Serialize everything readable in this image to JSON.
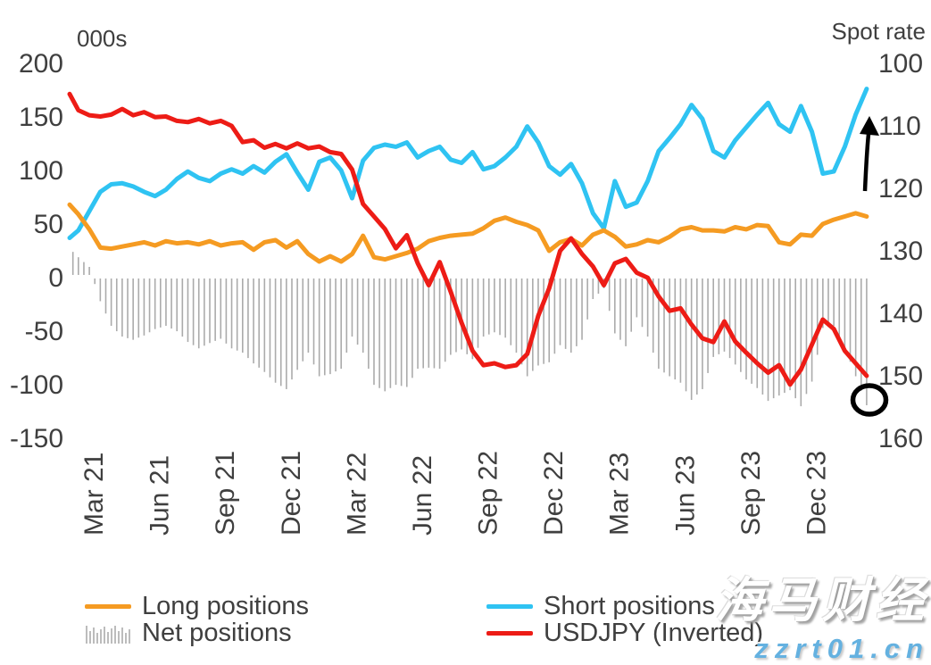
{
  "chart_data": {
    "type": "line+bar combo (dual axis, weekly CFTC JPY positioning vs USDJPY spot)",
    "left_axis": {
      "label": "000s",
      "ticks": [
        "200",
        "150",
        "100",
        "50",
        "0",
        "-50",
        "-100",
        "-150"
      ],
      "range": [
        -150,
        200
      ],
      "grid": false
    },
    "right_axis": {
      "label": "Spot rate",
      "ticks": [
        "100",
        "110",
        "120",
        "130",
        "140",
        "150",
        "160"
      ],
      "range": [
        100,
        160
      ],
      "inverted": true,
      "grid": false
    },
    "x_axis": {
      "tick_labels": [
        "Mar 21",
        "Jun 21",
        "Sep 21",
        "Dec 21",
        "Mar 22",
        "Jun 22",
        "Sep 22",
        "Dec 22",
        "Mar 23",
        "Jun 23",
        "Sep 23",
        "Dec 23"
      ],
      "tick_months": [
        0,
        3,
        6,
        9,
        12,
        15,
        18,
        21,
        24,
        27,
        30,
        33
      ],
      "unit": "months since Mar 2021"
    },
    "x_months": [
      -1.1,
      -0.7,
      -0.2,
      0.3,
      0.8,
      1.3,
      1.8,
      2.3,
      2.8,
      3.3,
      3.8,
      4.3,
      4.8,
      5.3,
      5.8,
      6.3,
      6.8,
      7.3,
      7.8,
      8.3,
      8.8,
      9.3,
      9.8,
      10.3,
      10.8,
      11.3,
      11.8,
      12.3,
      12.8,
      13.3,
      13.8,
      14.3,
      14.8,
      15.3,
      15.8,
      16.3,
      16.8,
      17.3,
      17.8,
      18.3,
      18.8,
      19.3,
      19.8,
      20.3,
      20.8,
      21.3,
      21.8,
      22.3,
      22.8,
      23.3,
      23.8,
      24.3,
      24.8,
      25.3,
      25.8,
      26.3,
      26.8,
      27.3,
      27.8,
      28.3,
      28.8,
      29.3,
      29.8,
      30.3,
      30.8,
      31.3,
      31.8,
      32.3,
      32.8,
      33.3,
      33.8,
      34.3,
      34.8,
      35.3
    ],
    "series": {
      "short_positions": {
        "name": "Short positions",
        "axis": "left",
        "style": "line",
        "color": "#2fc3f2",
        "values": [
          37,
          44,
          62,
          80,
          87,
          88,
          85,
          80,
          76,
          82,
          92,
          99,
          93,
          90,
          97,
          101,
          97,
          104,
          98,
          108,
          115,
          98,
          82,
          108,
          112,
          100,
          74,
          109,
          121,
          124,
          122,
          126,
          112,
          118,
          122,
          110,
          107,
          117,
          101,
          104,
          112,
          122,
          141,
          126,
          104,
          96,
          106,
          88,
          60,
          46,
          90,
          66,
          70,
          90,
          118,
          130,
          143,
          161,
          148,
          118,
          112,
          128,
          140,
          152,
          163,
          143,
          136,
          160,
          136,
          97,
          99,
          122,
          152,
          176
        ]
      },
      "long_positions": {
        "name": "Long positions",
        "axis": "left",
        "style": "line",
        "color": "#f59b22",
        "values": [
          68,
          59,
          45,
          28,
          27,
          29,
          31,
          33,
          30,
          34,
          32,
          33,
          31,
          34,
          30,
          32,
          33,
          26,
          33,
          35,
          28,
          34,
          22,
          15,
          20,
          15,
          22,
          39,
          19,
          17,
          20,
          23,
          27,
          34,
          37,
          39,
          40,
          41,
          46,
          53,
          56,
          52,
          49,
          44,
          25,
          33,
          36,
          30,
          40,
          44,
          38,
          29,
          31,
          35,
          33,
          38,
          45,
          47,
          44,
          44,
          43,
          47,
          45,
          49,
          48,
          33,
          31,
          40,
          39,
          50,
          54,
          57,
          60,
          57
        ]
      },
      "net_positions": {
        "name": "Net positions",
        "axis": "left",
        "style": "bar",
        "color": "#ababab",
        "values": [
          27,
          19,
          10,
          -22,
          -45,
          -55,
          -58,
          -54,
          -48,
          -45,
          -50,
          -60,
          -66,
          -61,
          -57,
          -66,
          -70,
          -80,
          -88,
          -98,
          -104,
          -86,
          -70,
          -92,
          -90,
          -85,
          -55,
          -70,
          -100,
          -106,
          -100,
          -102,
          -85,
          -84,
          -85,
          -72,
          -67,
          -76,
          -55,
          -51,
          -56,
          -70,
          -92,
          -82,
          -79,
          -63,
          -70,
          -58,
          -20,
          -10,
          -52,
          -64,
          -37,
          -55,
          -85,
          -92,
          -98,
          -114,
          -104,
          -74,
          -69,
          -81,
          -95,
          -103,
          -115,
          -110,
          -105,
          -120,
          -97,
          -47,
          -45,
          -65,
          -92,
          -119
        ]
      },
      "usdjpy": {
        "name": "USDJPY (Inverted)",
        "axis": "right",
        "style": "line",
        "color": "#ed1c16",
        "values": [
          104.9,
          107.5,
          108.3,
          108.5,
          108.2,
          107.3,
          108.3,
          107.8,
          108.6,
          108.5,
          109.2,
          109.4,
          108.9,
          109.6,
          109.2,
          110.0,
          112.6,
          112.3,
          113.5,
          112.9,
          113.6,
          112.8,
          113.6,
          113.3,
          114.2,
          114.5,
          117.0,
          122.5,
          124.5,
          126.5,
          129.6,
          127.5,
          132.0,
          135.5,
          131.8,
          136.5,
          141.5,
          146.0,
          148.3,
          148.0,
          148.6,
          148.3,
          146.5,
          140.4,
          136.0,
          130.0,
          128.0,
          130.5,
          132.5,
          135.5,
          132.0,
          131.3,
          133.5,
          134.3,
          137.3,
          139.6,
          139.2,
          141.8,
          144.0,
          144.6,
          141.3,
          144.5,
          146.3,
          148.0,
          149.5,
          148.3,
          151.4,
          149.0,
          145.0,
          141.0,
          142.5,
          146.0,
          148.0,
          150.0
        ]
      }
    },
    "annotations": [
      {
        "type": "arrow-up",
        "color": "#000000",
        "meaning": "short positions surging"
      },
      {
        "type": "circle",
        "color": "#000000",
        "meaning": "latest USDJPY level highlighted"
      }
    ],
    "legend_position": "bottom"
  },
  "legend": {
    "long_label": "Long positions",
    "net_label": "Net positions",
    "short_label": "Short positions",
    "usdjpy_label": "USDJPY (Inverted)"
  },
  "axis_titles": {
    "left": "000s",
    "right": "Spot rate"
  },
  "watermark": {
    "line1": "海马财经",
    "line2": "zzrt01.cn"
  },
  "colors": {
    "long": "#f59b22",
    "short": "#2fc3f2",
    "usdjpy": "#ed1c16",
    "net": "#ababab",
    "text": "#3f3f3f",
    "watermark_blue": "#64b1e0",
    "annotation": "#000000"
  }
}
